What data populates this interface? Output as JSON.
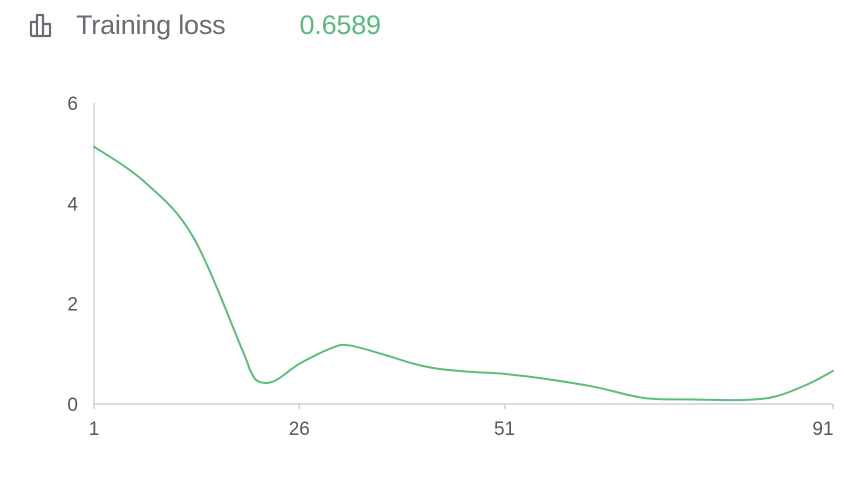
{
  "header": {
    "icon": "bar-chart-icon",
    "title": "Training loss",
    "value": "0.6589"
  },
  "colors": {
    "series": "#5bbd7b",
    "axis": "#cfd0d6",
    "tick_label": "#56565e",
    "title": "#6b6b73",
    "value": "#58bb79"
  },
  "chart_data": {
    "type": "line",
    "title": "Training loss",
    "xlabel": "",
    "ylabel": "",
    "xlim": [
      1,
      91
    ],
    "ylim": [
      0,
      6
    ],
    "x_ticks": [
      1,
      26,
      51,
      91
    ],
    "y_ticks": [
      0,
      2,
      4,
      6
    ],
    "grid": false,
    "legend": "none",
    "series": [
      {
        "values": [
          [
            1,
            5.13
          ],
          [
            7,
            4.45
          ],
          [
            13,
            3.35
          ],
          [
            19,
            1.1
          ],
          [
            20,
            0.68
          ],
          [
            21,
            0.45
          ],
          [
            23,
            0.46
          ],
          [
            26,
            0.8
          ],
          [
            30,
            1.12
          ],
          [
            32,
            1.17
          ],
          [
            36,
            1.0
          ],
          [
            40,
            0.8
          ],
          [
            43,
            0.7
          ],
          [
            47,
            0.64
          ],
          [
            51,
            0.6
          ],
          [
            56,
            0.5
          ],
          [
            62,
            0.34
          ],
          [
            68,
            0.12
          ],
          [
            74,
            0.09
          ],
          [
            80,
            0.08
          ],
          [
            84,
            0.15
          ],
          [
            88,
            0.4
          ],
          [
            91,
            0.66
          ]
        ]
      }
    ]
  }
}
